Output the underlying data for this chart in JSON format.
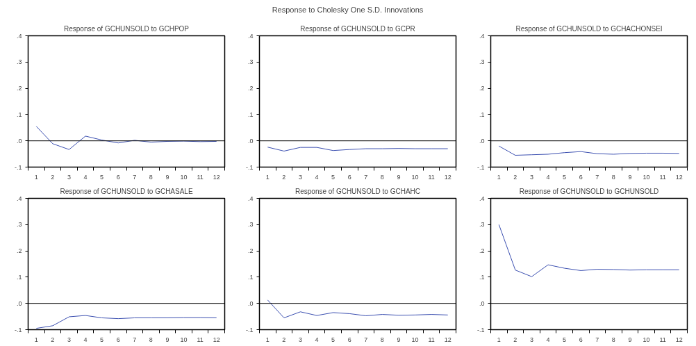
{
  "chart_data": [
    {
      "type": "other",
      "title": "Response to Cholesky One S.D. Innovations"
    },
    {
      "type": "line",
      "title": "Response of GCHUNSOLD to GCHPOP",
      "x": [
        1,
        2,
        3,
        4,
        5,
        6,
        7,
        8,
        9,
        10,
        11,
        12
      ],
      "xlim": [
        0.5,
        12.5
      ],
      "xticks": [
        {
          "value": 0.5,
          "label": null
        },
        1,
        {
          "value": 1.5,
          "label": null
        },
        2,
        {
          "value": 2.5,
          "label": null
        },
        3,
        {
          "value": 3.5,
          "label": null
        },
        4,
        {
          "value": 4.5,
          "label": null
        },
        5,
        {
          "value": 5.5,
          "label": null
        },
        6,
        {
          "value": 6.5,
          "label": null
        },
        7,
        {
          "value": 7.5,
          "label": null
        },
        8,
        {
          "value": 8.5,
          "label": null
        },
        9,
        {
          "value": 9.5,
          "label": null
        },
        10,
        {
          "value": 10.5,
          "label": null
        },
        11,
        {
          "value": 11.5,
          "label": null
        },
        12,
        {
          "value": 12.5,
          "label": null
        }
      ],
      "series": [
        {
          "color": "#3b4fb0",
          "values": [
            0.055,
            -0.011,
            -0.033,
            0.018,
            0.003,
            -0.008,
            0.002,
            -0.005,
            -0.002,
            -0.001,
            -0.003,
            -0.002
          ]
        }
      ],
      "ylim": [
        -0.1,
        0.4
      ],
      "yticks": [
        {
          "value": -0.1,
          "label": "-.1"
        },
        {
          "value": 0,
          "label": ".0"
        },
        {
          "value": 0.1,
          "label": ".1"
        },
        {
          "value": 0.2,
          "label": ".2"
        },
        {
          "value": 0.3,
          "label": ".3"
        },
        {
          "value": 0.4,
          "label": ".4"
        }
      ],
      "ref_lines": [
        {
          "axis": "y",
          "value": 0,
          "color": "#000000"
        }
      ],
      "grid": false
    },
    {
      "type": "line",
      "title": "Response of GCHUNSOLD to GCPR",
      "x": [
        1,
        2,
        3,
        4,
        5,
        6,
        7,
        8,
        9,
        10,
        11,
        12
      ],
      "xlim": [
        0.5,
        12.5
      ],
      "xticks": [
        {
          "value": 0.5,
          "label": null
        },
        1,
        {
          "value": 1.5,
          "label": null
        },
        2,
        {
          "value": 2.5,
          "label": null
        },
        3,
        {
          "value": 3.5,
          "label": null
        },
        4,
        {
          "value": 4.5,
          "label": null
        },
        5,
        {
          "value": 5.5,
          "label": null
        },
        6,
        {
          "value": 6.5,
          "label": null
        },
        7,
        {
          "value": 7.5,
          "label": null
        },
        8,
        {
          "value": 8.5,
          "label": null
        },
        9,
        {
          "value": 9.5,
          "label": null
        },
        10,
        {
          "value": 10.5,
          "label": null
        },
        11,
        {
          "value": 11.5,
          "label": null
        },
        12,
        {
          "value": 12.5,
          "label": null
        }
      ],
      "series": [
        {
          "color": "#3b4fb0",
          "values": [
            -0.024,
            -0.039,
            -0.025,
            -0.025,
            -0.037,
            -0.033,
            -0.03,
            -0.03,
            -0.029,
            -0.03,
            -0.03,
            -0.03
          ]
        }
      ],
      "ylim": [
        -0.1,
        0.4
      ],
      "yticks": [
        {
          "value": -0.1,
          "label": "-.1"
        },
        {
          "value": 0,
          "label": ".0"
        },
        {
          "value": 0.1,
          "label": ".1"
        },
        {
          "value": 0.2,
          "label": ".2"
        },
        {
          "value": 0.3,
          "label": ".3"
        },
        {
          "value": 0.4,
          "label": ".4"
        }
      ],
      "ref_lines": [
        {
          "axis": "y",
          "value": 0,
          "color": "#000000"
        }
      ],
      "grid": false
    },
    {
      "type": "line",
      "title": "Response of GCHUNSOLD to GCHACHONSEI",
      "x": [
        1,
        2,
        3,
        4,
        5,
        6,
        7,
        8,
        9,
        10,
        11,
        12
      ],
      "xlim": [
        0.5,
        12.5
      ],
      "xticks": [
        {
          "value": 0.5,
          "label": null
        },
        1,
        {
          "value": 1.5,
          "label": null
        },
        2,
        {
          "value": 2.5,
          "label": null
        },
        3,
        {
          "value": 3.5,
          "label": null
        },
        4,
        {
          "value": 4.5,
          "label": null
        },
        5,
        {
          "value": 5.5,
          "label": null
        },
        6,
        {
          "value": 6.5,
          "label": null
        },
        7,
        {
          "value": 7.5,
          "label": null
        },
        8,
        {
          "value": 8.5,
          "label": null
        },
        9,
        {
          "value": 9.5,
          "label": null
        },
        10,
        {
          "value": 10.5,
          "label": null
        },
        11,
        {
          "value": 11.5,
          "label": null
        },
        12,
        {
          "value": 12.5,
          "label": null
        }
      ],
      "series": [
        {
          "color": "#3b4fb0",
          "values": [
            -0.02,
            -0.055,
            -0.053,
            -0.051,
            -0.045,
            -0.041,
            -0.049,
            -0.051,
            -0.048,
            -0.047,
            -0.047,
            -0.048
          ]
        }
      ],
      "ylim": [
        -0.1,
        0.4
      ],
      "yticks": [
        {
          "value": -0.1,
          "label": "-.1"
        },
        {
          "value": 0,
          "label": ".0"
        },
        {
          "value": 0.1,
          "label": ".1"
        },
        {
          "value": 0.2,
          "label": ".2"
        },
        {
          "value": 0.3,
          "label": ".3"
        },
        {
          "value": 0.4,
          "label": ".4"
        }
      ],
      "ref_lines": [
        {
          "axis": "y",
          "value": 0,
          "color": "#000000"
        }
      ],
      "grid": false
    },
    {
      "type": "line",
      "title": "Response of GCHUNSOLD to GCHASALE",
      "x": [
        1,
        2,
        3,
        4,
        5,
        6,
        7,
        8,
        9,
        10,
        11,
        12
      ],
      "xlim": [
        0.5,
        12.5
      ],
      "xticks": [
        {
          "value": 0.5,
          "label": null
        },
        1,
        {
          "value": 1.5,
          "label": null
        },
        2,
        {
          "value": 2.5,
          "label": null
        },
        3,
        {
          "value": 3.5,
          "label": null
        },
        4,
        {
          "value": 4.5,
          "label": null
        },
        5,
        {
          "value": 5.5,
          "label": null
        },
        6,
        {
          "value": 6.5,
          "label": null
        },
        7,
        {
          "value": 7.5,
          "label": null
        },
        8,
        {
          "value": 8.5,
          "label": null
        },
        9,
        {
          "value": 9.5,
          "label": null
        },
        10,
        {
          "value": 10.5,
          "label": null
        },
        11,
        {
          "value": 11.5,
          "label": null
        },
        12,
        {
          "value": 12.5,
          "label": null
        }
      ],
      "series": [
        {
          "color": "#3b4fb0",
          "values": [
            -0.095,
            -0.085,
            -0.051,
            -0.046,
            -0.055,
            -0.058,
            -0.055,
            -0.055,
            -0.055,
            -0.054,
            -0.054,
            -0.055
          ]
        }
      ],
      "ylim": [
        -0.1,
        0.4
      ],
      "yticks": [
        {
          "value": -0.1,
          "label": "-.1"
        },
        {
          "value": 0,
          "label": ".0"
        },
        {
          "value": 0.1,
          "label": ".1"
        },
        {
          "value": 0.2,
          "label": ".2"
        },
        {
          "value": 0.3,
          "label": ".3"
        },
        {
          "value": 0.4,
          "label": ".4"
        }
      ],
      "ref_lines": [
        {
          "axis": "y",
          "value": 0,
          "color": "#000000"
        }
      ],
      "grid": false
    },
    {
      "type": "line",
      "title": "Response of GCHUNSOLD to GCHAHC",
      "x": [
        1,
        2,
        3,
        4,
        5,
        6,
        7,
        8,
        9,
        10,
        11,
        12
      ],
      "xlim": [
        0.5,
        12.5
      ],
      "xticks": [
        {
          "value": 0.5,
          "label": null
        },
        1,
        {
          "value": 1.5,
          "label": null
        },
        2,
        {
          "value": 2.5,
          "label": null
        },
        3,
        {
          "value": 3.5,
          "label": null
        },
        4,
        {
          "value": 4.5,
          "label": null
        },
        5,
        {
          "value": 5.5,
          "label": null
        },
        6,
        {
          "value": 6.5,
          "label": null
        },
        7,
        {
          "value": 7.5,
          "label": null
        },
        8,
        {
          "value": 8.5,
          "label": null
        },
        9,
        {
          "value": 9.5,
          "label": null
        },
        10,
        {
          "value": 10.5,
          "label": null
        },
        11,
        {
          "value": 11.5,
          "label": null
        },
        12,
        {
          "value": 12.5,
          "label": null
        }
      ],
      "series": [
        {
          "color": "#3b4fb0",
          "values": [
            0.013,
            -0.055,
            -0.032,
            -0.046,
            -0.035,
            -0.039,
            -0.047,
            -0.042,
            -0.045,
            -0.044,
            -0.042,
            -0.044
          ]
        }
      ],
      "ylim": [
        -0.1,
        0.4
      ],
      "yticks": [
        {
          "value": -0.1,
          "label": "-.1"
        },
        {
          "value": 0,
          "label": ".0"
        },
        {
          "value": 0.1,
          "label": ".1"
        },
        {
          "value": 0.2,
          "label": ".2"
        },
        {
          "value": 0.3,
          "label": ".3"
        },
        {
          "value": 0.4,
          "label": ".4"
        }
      ],
      "ref_lines": [
        {
          "axis": "y",
          "value": 0,
          "color": "#000000"
        }
      ],
      "grid": false
    },
    {
      "type": "line",
      "title": "Response of GCHUNSOLD to GCHUNSOLD",
      "x": [
        1,
        2,
        3,
        4,
        5,
        6,
        7,
        8,
        9,
        10,
        11,
        12
      ],
      "xlim": [
        0.5,
        12.5
      ],
      "xticks": [
        {
          "value": 0.5,
          "label": null
        },
        1,
        {
          "value": 1.5,
          "label": null
        },
        2,
        {
          "value": 2.5,
          "label": null
        },
        3,
        {
          "value": 3.5,
          "label": null
        },
        4,
        {
          "value": 4.5,
          "label": null
        },
        5,
        {
          "value": 5.5,
          "label": null
        },
        6,
        {
          "value": 6.5,
          "label": null
        },
        7,
        {
          "value": 7.5,
          "label": null
        },
        8,
        {
          "value": 8.5,
          "label": null
        },
        9,
        {
          "value": 9.5,
          "label": null
        },
        10,
        {
          "value": 10.5,
          "label": null
        },
        11,
        {
          "value": 11.5,
          "label": null
        },
        12,
        {
          "value": 12.5,
          "label": null
        }
      ],
      "series": [
        {
          "color": "#3b4fb0",
          "values": [
            0.3,
            0.127,
            0.102,
            0.147,
            0.134,
            0.125,
            0.13,
            0.129,
            0.127,
            0.128,
            0.128,
            0.128
          ]
        }
      ],
      "ylim": [
        -0.1,
        0.4
      ],
      "yticks": [
        {
          "value": -0.1,
          "label": "-.1"
        },
        {
          "value": 0,
          "label": ".0"
        },
        {
          "value": 0.1,
          "label": ".1"
        },
        {
          "value": 0.2,
          "label": ".2"
        },
        {
          "value": 0.3,
          "label": ".3"
        },
        {
          "value": 0.4,
          "label": ".4"
        }
      ],
      "ref_lines": [
        {
          "axis": "y",
          "value": 0,
          "color": "#000000"
        }
      ],
      "grid": false
    }
  ]
}
